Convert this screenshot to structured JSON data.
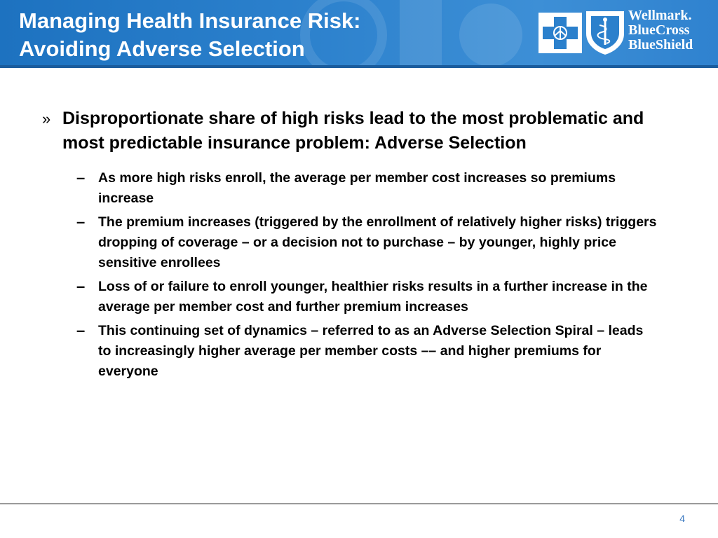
{
  "header": {
    "title_lines": [
      "Managing Health Insurance Risk:",
      "Avoiding Adverse Selection"
    ],
    "background_color": "#2b80cc",
    "logo": {
      "icons": [
        "blue-cross-icon",
        "blue-shield-icon"
      ],
      "wordmark_lines": [
        "Wellmark.",
        "BlueCross",
        "BlueShield"
      ]
    }
  },
  "body": {
    "main_bullet": {
      "marker": "»",
      "text": "Disproportionate share of high risks lead to the most problematic and most predictable insurance problem: Adverse Selection"
    },
    "sub_bullets": [
      {
        "marker": "–",
        "text": "As more high risks enroll, the average per member cost increases so premiums increase"
      },
      {
        "marker": "–",
        "text": "The premium increases (triggered by the enrollment of relatively higher risks) triggers dropping of coverage – or a decision not to purchase – by younger, highly price sensitive enrollees"
      },
      {
        "marker": "–",
        "text": "Loss of or failure to enroll younger, healthier risks results in a further increase in the average per member cost and further premium increases"
      },
      {
        "marker": "–",
        "text": "This continuing set of dynamics – referred to as an Adverse Selection Spiral – leads to increasingly higher average per member costs –– and higher premiums for everyone"
      }
    ]
  },
  "footer": {
    "page_number": "4",
    "page_number_color": "#3a78c0"
  }
}
